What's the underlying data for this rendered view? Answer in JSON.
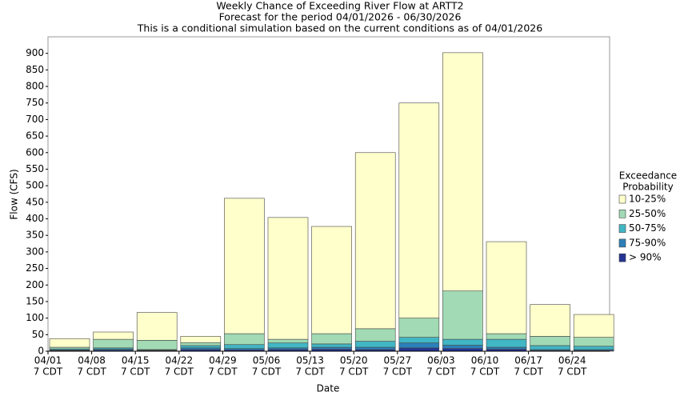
{
  "chart_data": {
    "type": "stacked_bar",
    "title": "Weekly Chance of Exceeding River Flow at ARTT2",
    "subtitle": "Forecast for the period 04/01/2026 - 06/30/2026",
    "note": "This is a conditional simulation based on the current conditions as of 04/01/2026",
    "x_label": "Date",
    "y_label": "Flow (CFS)",
    "categories": [
      "04/01",
      "04/08",
      "04/15",
      "04/22",
      "04/29",
      "05/06",
      "05/13",
      "05/20",
      "05/27",
      "06/03",
      "06/10",
      "06/17",
      "06/24"
    ],
    "category_time": "7 CDT",
    "legend_title": [
      "Exceedance",
      "Probability"
    ],
    "legend_position": "right",
    "series": [
      {
        "name": "> 90%",
        "color": "#253494",
        "values": [
          2,
          3,
          2,
          5,
          4,
          5,
          6,
          5,
          10,
          8,
          6,
          2,
          2
        ]
      },
      {
        "name": "75-90%",
        "color": "#2c7fb8",
        "values": [
          2,
          3,
          1,
          5,
          4,
          5,
          6,
          7,
          15,
          10,
          6,
          3,
          3
        ]
      },
      {
        "name": "50-75%",
        "color": "#41b6c4",
        "values": [
          3,
          4,
          2,
          7,
          12,
          15,
          10,
          18,
          17,
          18,
          24,
          12,
          10
        ]
      },
      {
        "name": "25-50%",
        "color": "#a1dab4",
        "values": [
          5,
          26,
          28,
          9,
          33,
          11,
          31,
          38,
          58,
          146,
          17,
          28,
          27
        ]
      },
      {
        "name": "10-25%",
        "color": "#ffffcc",
        "values": [
          26,
          22,
          84,
          19,
          409,
          368,
          324,
          532,
          650,
          720,
          278,
          96,
          69
        ]
      }
    ],
    "ylim": [
      0,
      950
    ],
    "yticks": [
      0,
      50,
      100,
      150,
      200,
      250,
      300,
      350,
      400,
      450,
      500,
      550,
      600,
      650,
      700,
      750,
      800,
      850,
      900
    ],
    "grid": false
  }
}
